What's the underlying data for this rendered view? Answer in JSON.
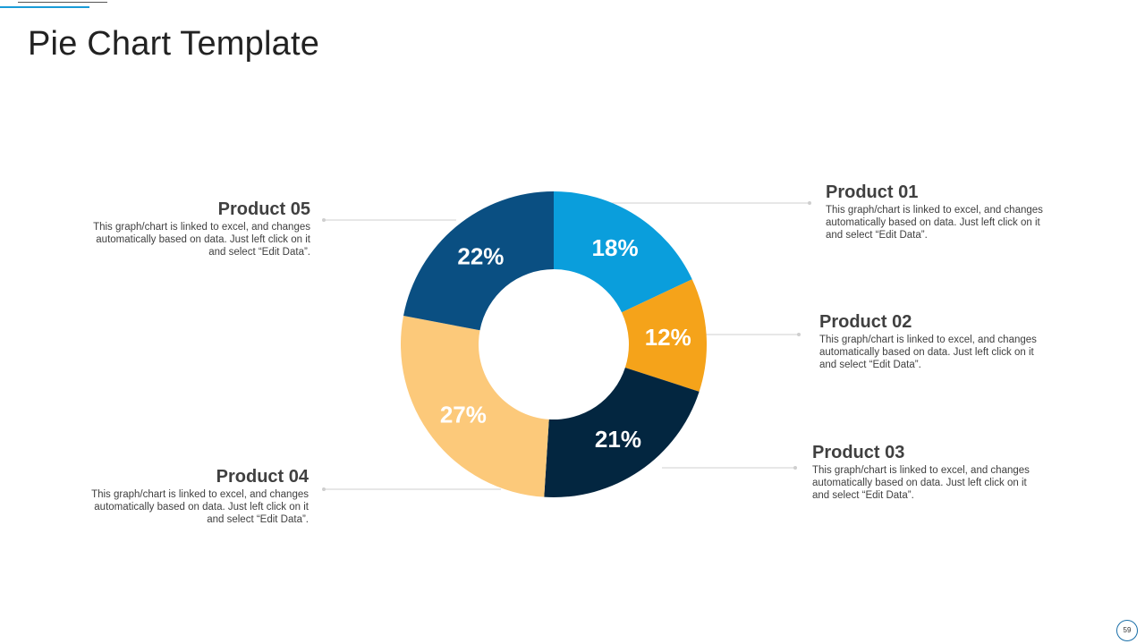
{
  "title": "Pie Chart Template",
  "page_number": "59",
  "chart_data": {
    "type": "pie",
    "variant": "donut",
    "start_angle_deg": 0,
    "direction": "clockwise",
    "slices": [
      {
        "label": "Product 01",
        "value": 18,
        "value_label": "18%",
        "color": "#0a9edc"
      },
      {
        "label": "Product 02",
        "value": 12,
        "value_label": "12%",
        "color": "#f5a31a"
      },
      {
        "label": "Product 03",
        "value": 21,
        "value_label": "21%",
        "color": "#032640"
      },
      {
        "label": "Product 04",
        "value": 27,
        "value_label": "27%",
        "color": "#fcc97a"
      },
      {
        "label": "Product 05",
        "value": 22,
        "value_label": "22%",
        "color": "#0a4f82"
      }
    ]
  },
  "callouts": {
    "p01": {
      "title": "Product 01",
      "desc": "This graph/chart is linked to excel, and changes automatically based on data. Just left click on it and select “Edit Data”."
    },
    "p02": {
      "title": "Product 02",
      "desc": "This graph/chart is linked to excel, and changes automatically based on data. Just left click on it and select “Edit Data”."
    },
    "p03": {
      "title": "Product 03",
      "desc": "This graph/chart is linked to excel, and changes automatically based on data. Just left click on it and select “Edit Data”."
    },
    "p04": {
      "title": "Product 04",
      "desc": "This graph/chart is linked to excel, and changes automatically based on data. Just left click on it and select “Edit Data”."
    },
    "p05": {
      "title": "Product 05",
      "desc": "This graph/chart is linked to excel, and changes automatically based on data. Just left click on it and select “Edit Data”."
    }
  }
}
